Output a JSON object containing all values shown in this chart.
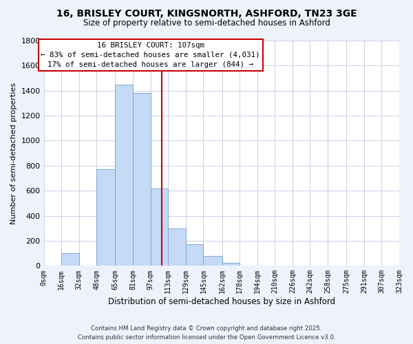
{
  "title": "16, BRISLEY COURT, KINGSNORTH, ASHFORD, TN23 3GE",
  "subtitle": "Size of property relative to semi-detached houses in Ashford",
  "xlabel": "Distribution of semi-detached houses by size in Ashford",
  "ylabel": "Number of semi-detached properties",
  "bin_edges": [
    0,
    16,
    32,
    48,
    65,
    81,
    97,
    113,
    129,
    145,
    162,
    178,
    194,
    210,
    226,
    242,
    258,
    275,
    291,
    307,
    323
  ],
  "bin_labels": [
    "0sqm",
    "16sqm",
    "32sqm",
    "48sqm",
    "65sqm",
    "81sqm",
    "97sqm",
    "113sqm",
    "129sqm",
    "145sqm",
    "162sqm",
    "178sqm",
    "194sqm",
    "210sqm",
    "226sqm",
    "242sqm",
    "258sqm",
    "275sqm",
    "291sqm",
    "307sqm",
    "323sqm"
  ],
  "counts": [
    0,
    100,
    0,
    770,
    1450,
    1380,
    620,
    300,
    170,
    80,
    25,
    0,
    0,
    0,
    0,
    0,
    0,
    0,
    0,
    0
  ],
  "bar_color": "#c6d9f5",
  "bar_edgecolor": "#7aaad4",
  "vline_x": 107,
  "vline_color": "#cc0000",
  "annotation_title": "16 BRISLEY COURT: 107sqm",
  "annotation_line1": "← 83% of semi-detached houses are smaller (4,031)",
  "annotation_line2": "17% of semi-detached houses are larger (844) →",
  "annotation_box_color": "#ffffff",
  "annotation_box_edgecolor": "#cc0000",
  "ylim": [
    0,
    1800
  ],
  "yticks": [
    0,
    200,
    400,
    600,
    800,
    1000,
    1200,
    1400,
    1600,
    1800
  ],
  "footer_line1": "Contains HM Land Registry data © Crown copyright and database right 2025.",
  "footer_line2": "Contains public sector information licensed under the Open Government Licence v3.0.",
  "bg_color": "#eef2fb",
  "plot_bg_color": "#ffffff",
  "grid_color": "#c8d0e8"
}
